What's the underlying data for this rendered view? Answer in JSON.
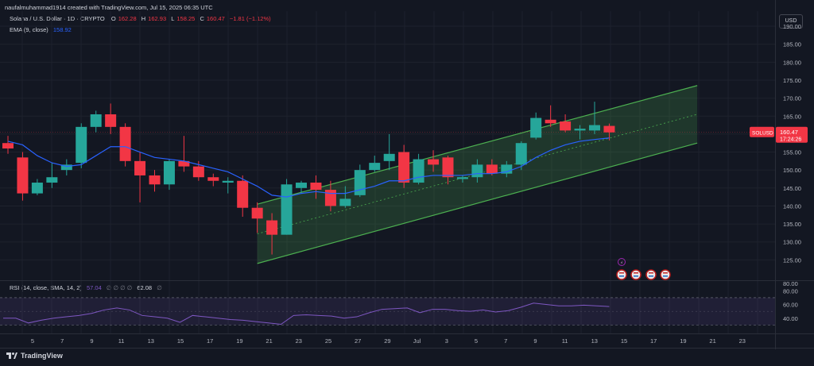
{
  "header": {
    "author_line": "naufalmuhammad1914 created with TradingView.com, Jul 15, 2025 06:35 UTC",
    "symbol_desc": "Solana / U.S. Dollar · 1D · CRYPTO",
    "ohlc": {
      "O": "162.28",
      "H": "162.93",
      "L": "158.25",
      "C": "160.47",
      "change": "−1.81 (−1.12%)"
    },
    "ema_label": "EMA (9, close)",
    "ema_value": "158.92",
    "currency": "USD"
  },
  "rsi": {
    "label": "RSI (14, close, SMA, 14, 2)",
    "value": "57.04",
    "placeholders": "∅ ∅ ∅ ∅",
    "value2": "62.08",
    "extra": "∅",
    "ticks": [
      80,
      60,
      40
    ],
    "band": [
      30,
      70
    ],
    "values": [
      40,
      40,
      33,
      37,
      40,
      42,
      44,
      47,
      52,
      55,
      52,
      44,
      42,
      40,
      34,
      44,
      42,
      40,
      38,
      37,
      35,
      33,
      31,
      44,
      45,
      44,
      43,
      40,
      42,
      48,
      53,
      54,
      55,
      48,
      53,
      53,
      51,
      50,
      52,
      49,
      51,
      56,
      62,
      60,
      58,
      58,
      59,
      58,
      57
    ]
  },
  "price_axis": {
    "ticks": [
      "190.00",
      "185.00",
      "180.00",
      "175.00",
      "170.00",
      "165.00",
      "160.00",
      "155.00",
      "150.00",
      "145.00",
      "140.00",
      "135.00",
      "130.00",
      "125.00"
    ],
    "last_label": "SOLUSD",
    "last_price": "160.47",
    "countdown": "17:24:26",
    "lower_tick": "80.00"
  },
  "time_axis": {
    "labels": [
      "5",
      "7",
      "9",
      "11",
      "13",
      "15",
      "17",
      "19",
      "21",
      "23",
      "25",
      "27",
      "29",
      "Jul",
      "3",
      "5",
      "7",
      "9",
      "11",
      "13",
      "15",
      "17",
      "19",
      "21",
      "23"
    ]
  },
  "brand": "TradingView",
  "colors": {
    "up": "#26a69a",
    "down": "#f23645",
    "ema": "#2962ff",
    "channel": "#4caf50",
    "rsi": "#7e57c2"
  },
  "chart_data": {
    "type": "candlestick",
    "title": "Solana / U.S. Dollar · 1D · CRYPTO",
    "ylim": [
      120,
      192
    ],
    "candles": [
      {
        "o": 157.5,
        "h": 159.5,
        "l": 154.5,
        "c": 156.0
      },
      {
        "o": 153.5,
        "h": 155.0,
        "l": 141.5,
        "c": 143.5
      },
      {
        "o": 143.5,
        "h": 147.5,
        "l": 143.0,
        "c": 146.5
      },
      {
        "o": 146.5,
        "h": 152.0,
        "l": 145.0,
        "c": 148.0
      },
      {
        "o": 150.0,
        "h": 153.0,
        "l": 148.5,
        "c": 151.5
      },
      {
        "o": 152.0,
        "h": 163.0,
        "l": 150.5,
        "c": 162.0
      },
      {
        "o": 162.0,
        "h": 166.5,
        "l": 160.5,
        "c": 165.5
      },
      {
        "o": 165.5,
        "h": 168.5,
        "l": 160.0,
        "c": 162.0
      },
      {
        "o": 162.0,
        "h": 163.0,
        "l": 151.0,
        "c": 152.5
      },
      {
        "o": 152.5,
        "h": 155.0,
        "l": 141.0,
        "c": 148.5
      },
      {
        "o": 148.5,
        "h": 150.0,
        "l": 144.0,
        "c": 146.0
      },
      {
        "o": 146.0,
        "h": 153.0,
        "l": 144.5,
        "c": 152.5
      },
      {
        "o": 152.5,
        "h": 159.5,
        "l": 149.5,
        "c": 151.0
      },
      {
        "o": 151.0,
        "h": 152.5,
        "l": 147.0,
        "c": 148.0
      },
      {
        "o": 148.0,
        "h": 149.0,
        "l": 145.5,
        "c": 147.0
      },
      {
        "o": 146.5,
        "h": 148.0,
        "l": 143.5,
        "c": 147.0
      },
      {
        "o": 147.0,
        "h": 148.5,
        "l": 137.0,
        "c": 139.5
      },
      {
        "o": 139.5,
        "h": 141.0,
        "l": 132.5,
        "c": 136.5
      },
      {
        "o": 136.0,
        "h": 138.0,
        "l": 126.5,
        "c": 132.0
      },
      {
        "o": 132.0,
        "h": 147.5,
        "l": 132.0,
        "c": 146.0
      },
      {
        "o": 145.0,
        "h": 147.0,
        "l": 143.5,
        "c": 146.5
      },
      {
        "o": 146.5,
        "h": 148.5,
        "l": 142.0,
        "c": 144.5
      },
      {
        "o": 144.5,
        "h": 147.0,
        "l": 138.5,
        "c": 140.0
      },
      {
        "o": 140.0,
        "h": 145.5,
        "l": 139.5,
        "c": 142.0
      },
      {
        "o": 143.0,
        "h": 151.5,
        "l": 142.5,
        "c": 150.0
      },
      {
        "o": 150.0,
        "h": 154.0,
        "l": 149.5,
        "c": 152.0
      },
      {
        "o": 152.5,
        "h": 160.0,
        "l": 150.0,
        "c": 154.5
      },
      {
        "o": 155.0,
        "h": 157.0,
        "l": 145.0,
        "c": 146.5
      },
      {
        "o": 146.5,
        "h": 154.5,
        "l": 146.0,
        "c": 153.0
      },
      {
        "o": 153.0,
        "h": 155.5,
        "l": 149.5,
        "c": 151.5
      },
      {
        "o": 153.5,
        "h": 154.0,
        "l": 146.0,
        "c": 148.0
      },
      {
        "o": 147.5,
        "h": 148.5,
        "l": 146.5,
        "c": 148.0
      },
      {
        "o": 148.0,
        "h": 153.0,
        "l": 146.5,
        "c": 151.5
      },
      {
        "o": 151.5,
        "h": 153.0,
        "l": 148.5,
        "c": 149.0
      },
      {
        "o": 149.0,
        "h": 152.5,
        "l": 148.0,
        "c": 151.5
      },
      {
        "o": 151.5,
        "h": 158.0,
        "l": 150.0,
        "c": 157.5
      },
      {
        "o": 159.0,
        "h": 166.0,
        "l": 158.5,
        "c": 164.5
      },
      {
        "o": 164.0,
        "h": 168.0,
        "l": 162.0,
        "c": 163.0
      },
      {
        "o": 163.5,
        "h": 165.5,
        "l": 160.5,
        "c": 161.0
      },
      {
        "o": 161.0,
        "h": 162.5,
        "l": 158.5,
        "c": 161.5
      },
      {
        "o": 161.0,
        "h": 169.0,
        "l": 160.0,
        "c": 162.5
      },
      {
        "o": 162.28,
        "h": 162.93,
        "l": 158.25,
        "c": 160.47
      }
    ],
    "ema": [
      158,
      157,
      154,
      152,
      151,
      151.5,
      154,
      156.5,
      156.5,
      155,
      153.5,
      153,
      152.5,
      151.5,
      150.5,
      149.5,
      147.5,
      145.5,
      143,
      142.5,
      143.5,
      144,
      143.5,
      143.5,
      144.5,
      145.5,
      147,
      147,
      148,
      148.5,
      148.5,
      148.5,
      149,
      149,
      149.5,
      151,
      153.5,
      155.5,
      157,
      158,
      158.5,
      158.92
    ],
    "channel": {
      "upper": [
        [
          17,
          140.5
        ],
        [
          47,
          173.5
        ]
      ],
      "lower": [
        [
          17,
          124
        ],
        [
          47,
          157.5
        ]
      ]
    }
  }
}
